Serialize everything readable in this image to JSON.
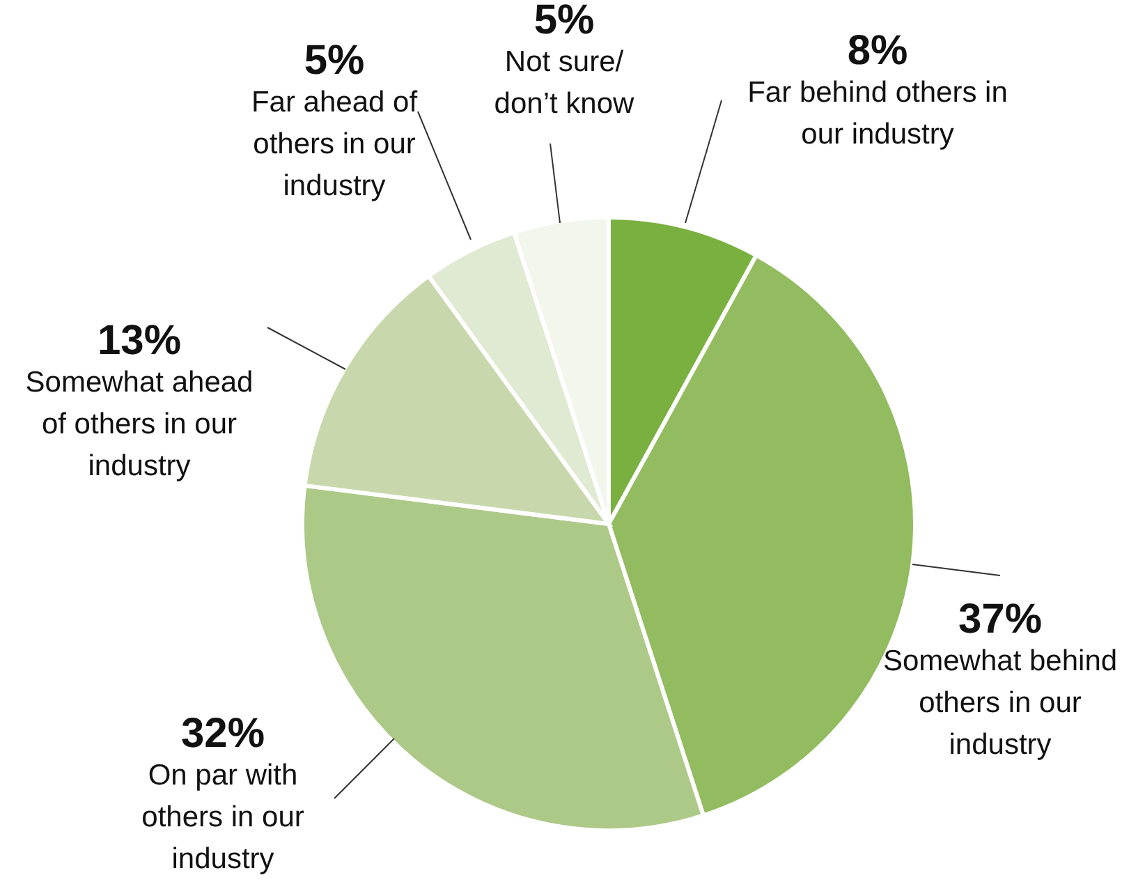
{
  "chart_data": {
    "type": "pie",
    "categories": [
      "Far behind others in our industry",
      "Somewhat behind others in our industry",
      "On par with others in our industry",
      "Somewhat ahead of others in our industry",
      "Far ahead of others in our industry",
      "Not sure/ don’t know"
    ],
    "values": [
      8,
      37,
      32,
      13,
      5,
      5
    ],
    "value_labels": [
      "8%",
      "37%",
      "32%",
      "13%",
      "5%",
      "5%"
    ],
    "colors": [
      "#7ab040",
      "#93bb60",
      "#adc988",
      "#c8d8ac",
      "#e0ead3",
      "#f2f6ec"
    ]
  }
}
